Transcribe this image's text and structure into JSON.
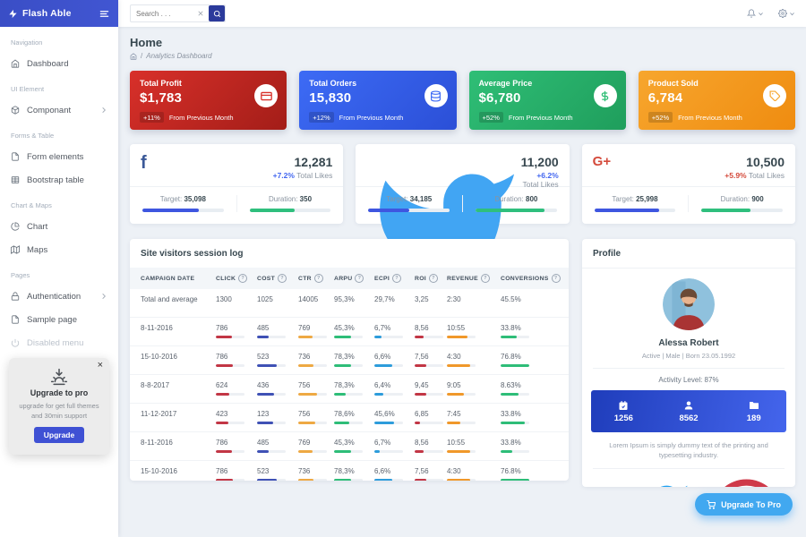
{
  "app": {
    "brand": "Flash Able",
    "search_placeholder": "Search . . ."
  },
  "header": {
    "icons": [
      "bell",
      "settings"
    ]
  },
  "sidebar": {
    "sections": [
      {
        "label": "Navigation",
        "items": [
          {
            "label": "Dashboard",
            "icon": "home"
          }
        ]
      },
      {
        "label": "UI Element",
        "items": [
          {
            "label": "Componant",
            "icon": "box",
            "chevron": true
          }
        ]
      },
      {
        "label": "Forms & Table",
        "items": [
          {
            "label": "Form elements",
            "icon": "file"
          },
          {
            "label": "Bootstrap table",
            "icon": "table"
          }
        ]
      },
      {
        "label": "Chart & Maps",
        "items": [
          {
            "label": "Chart",
            "icon": "pie"
          },
          {
            "label": "Maps",
            "icon": "map"
          }
        ]
      },
      {
        "label": "Pages",
        "items": [
          {
            "label": "Authentication",
            "icon": "lock",
            "chevron": true
          },
          {
            "label": "Sample page",
            "icon": "file"
          },
          {
            "label": "Disabled menu",
            "icon": "power",
            "disabled": true
          }
        ]
      }
    ],
    "upgrade_popup": {
      "title": "Upgrade to pro",
      "text": "upgrade for get full themes and 30min support",
      "button": "Upgrade"
    }
  },
  "page": {
    "title": "Home",
    "breadcrumb": "Analytics Dashboard"
  },
  "stat_cards": [
    {
      "label": "Total Profit",
      "value": "$1,783",
      "badge": "+11%",
      "note": "From Previous Month",
      "icon": "credit-card",
      "gradient": [
        "#d8302a",
        "#a31d18"
      ]
    },
    {
      "label": "Total Orders",
      "value": "15,830",
      "badge": "+12%",
      "note": "From Previous Month",
      "icon": "database",
      "gradient": [
        "#3d6bf5",
        "#2b4fd7"
      ]
    },
    {
      "label": "Average Price",
      "value": "$6,780",
      "badge": "+52%",
      "note": "From Previous Month",
      "icon": "dollar",
      "gradient": [
        "#2fbe76",
        "#1f9e5c"
      ]
    },
    {
      "label": "Product Sold",
      "value": "6,784",
      "badge": "+52%",
      "note": "From Previous Month",
      "icon": "tag",
      "gradient": [
        "#f7a62e",
        "#ef8c10"
      ]
    }
  ],
  "social_cards": [
    {
      "network": "facebook",
      "brand_color": "#3b5998",
      "value": "12,281",
      "delta": "+7.2%",
      "delta_color": "#4367f0",
      "delta_label": "Total Likes",
      "target_label": "Target:",
      "target_value": "35,098",
      "target_pct": 70,
      "target_color": "#3e56e0",
      "duration_label": "Duration:",
      "duration_value": "350",
      "duration_pct": 55,
      "duration_color": "#2fbf7d"
    },
    {
      "network": "twitter",
      "brand_color": "#41a5f3",
      "value": "11,200",
      "delta": "+6.2%",
      "delta_color": "#4367f0",
      "delta_label": "Total Likes",
      "target_label": "Target:",
      "target_value": "34,185",
      "target_pct": 50,
      "target_color": "#3e56e0",
      "duration_label": "Duration:",
      "duration_value": "800",
      "duration_pct": 85,
      "duration_color": "#2fbf7d"
    },
    {
      "network": "google-plus",
      "brand_color": "#d44a3b",
      "value": "10,500",
      "delta": "+5.9%",
      "delta_color": "#d44a3b",
      "delta_label": "Total Likes",
      "target_label": "Target:",
      "target_value": "25,998",
      "target_pct": 80,
      "target_color": "#3e56e0",
      "duration_label": "Duration:",
      "duration_value": "900",
      "duration_pct": 60,
      "duration_color": "#2fbf7d"
    }
  ],
  "table": {
    "title": "Site visitors session log",
    "columns": [
      {
        "label": "Campaign date",
        "help": false,
        "bar_color": ""
      },
      {
        "label": "Click",
        "help": true,
        "bar_color": "#c23645"
      },
      {
        "label": "Cost",
        "help": true,
        "bar_color": "#3f51b5"
      },
      {
        "label": "CTR",
        "help": true,
        "bar_color": "#eea943"
      },
      {
        "label": "ARPU",
        "help": true,
        "bar_color": "#2ebd78"
      },
      {
        "label": "ECPI",
        "help": true,
        "bar_color": "#2d9cdb"
      },
      {
        "label": "ROI",
        "help": true,
        "bar_color": "#c23645"
      },
      {
        "label": "Revenue",
        "help": true,
        "bar_color": "#f0982a"
      },
      {
        "label": "Conversions",
        "help": true,
        "bar_color": "#2ebd78"
      }
    ],
    "rows": [
      {
        "date": "Total and average",
        "values": [
          "1300",
          "1025",
          "14005",
          "95,3%",
          "29,7%",
          "3,25",
          "2:30",
          "45.5%"
        ],
        "bars": null
      },
      {
        "date": "8-11-2016",
        "values": [
          "786",
          "485",
          "769",
          "45,3%",
          "6,7%",
          "8,56",
          "10:55",
          "33.8%"
        ],
        "bars": [
          55,
          42,
          50,
          58,
          25,
          30,
          72,
          55
        ]
      },
      {
        "date": "15-10-2016",
        "values": [
          "786",
          "523",
          "736",
          "78,3%",
          "6,6%",
          "7,56",
          "4:30",
          "76.8%"
        ],
        "bars": [
          60,
          68,
          52,
          60,
          62,
          42,
          80,
          100
        ]
      },
      {
        "date": "8-8-2017",
        "values": [
          "624",
          "436",
          "756",
          "78,3%",
          "6,4%",
          "9,45",
          "9:05",
          "8.63%"
        ],
        "bars": [
          48,
          58,
          65,
          42,
          30,
          42,
          58,
          62
        ]
      },
      {
        "date": "11-12-2017",
        "values": [
          "423",
          "123",
          "756",
          "78,6%",
          "45,6%",
          "6,85",
          "7:45",
          "33.8%"
        ],
        "bars": [
          45,
          55,
          60,
          52,
          70,
          18,
          48,
          85
        ]
      },
      {
        "date": "8-11-2016",
        "values": [
          "786",
          "485",
          "769",
          "45,3%",
          "6,7%",
          "8,56",
          "10:55",
          "33.8%"
        ],
        "bars": [
          55,
          42,
          50,
          58,
          20,
          30,
          80,
          42
        ]
      },
      {
        "date": "15-10-2016",
        "values": [
          "786",
          "523",
          "736",
          "78,3%",
          "6,6%",
          "7,56",
          "4:30",
          "76.8%"
        ],
        "bars": [
          60,
          68,
          52,
          60,
          62,
          42,
          80,
          100
        ]
      }
    ]
  },
  "profile": {
    "title": "Profile",
    "name": "Alessa Robert",
    "meta": "Active | Male | Born 23.05.1992",
    "activity": "Activity Level: 87%",
    "stats": [
      {
        "icon": "calendar",
        "value": "1256"
      },
      {
        "icon": "user",
        "value": "8562"
      },
      {
        "icon": "folder",
        "value": "189"
      }
    ],
    "bio": "Lorem Ipsum is simply dummy text of the printing and typesetting industry.",
    "socials": [
      {
        "network": "facebook",
        "color": "#3b5998"
      },
      {
        "network": "twitter",
        "color": "#1da1f2"
      },
      {
        "network": "dribbble",
        "color": "#cf3a4a"
      }
    ]
  },
  "fab": {
    "label": "Upgrade To Pro"
  }
}
